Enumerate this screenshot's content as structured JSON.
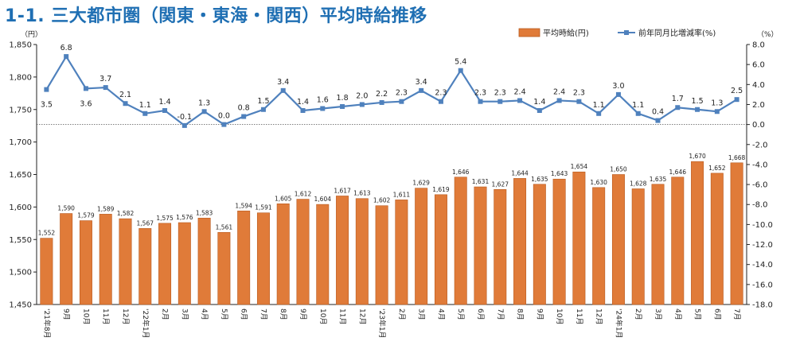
{
  "title": "1-1. 三大都市圏（関東・東海・関西）平均時給推移",
  "chart_data": {
    "type": "bar",
    "left_unit": "（円）",
    "right_unit": "（%）",
    "categories": [
      "'21年8月",
      "9月",
      "10月",
      "11月",
      "12月",
      "'22年1月",
      "2月",
      "3月",
      "4月",
      "5月",
      "6月",
      "7月",
      "8月",
      "9月",
      "10月",
      "11月",
      "12月",
      "'23年1月",
      "2月",
      "3月",
      "4月",
      "5月",
      "6月",
      "7月",
      "8月",
      "9月",
      "10月",
      "11月",
      "12月",
      "'24年1月",
      "2月",
      "3月",
      "4月",
      "5月",
      "6月",
      "7月"
    ],
    "series": [
      {
        "name": "平均時給(円)",
        "type": "bar",
        "axis": "left",
        "color": "#e07b39",
        "values": [
          1552,
          1590,
          1579,
          1589,
          1582,
          1567,
          1575,
          1576,
          1583,
          1561,
          1594,
          1591,
          1605,
          1612,
          1604,
          1617,
          1613,
          1602,
          1611,
          1629,
          1619,
          1646,
          1631,
          1627,
          1644,
          1635,
          1643,
          1654,
          1630,
          1650,
          1628,
          1635,
          1646,
          1670,
          1652,
          1668
        ],
        "labels": [
          "1,552",
          "1,590",
          "1,579",
          "1,589",
          "1,582",
          "1,567",
          "1,575",
          "1,576",
          "1,583",
          "1,561",
          "1,594",
          "1,591",
          "1,605",
          "1,612",
          "1,604",
          "1,617",
          "1,613",
          "1,602",
          "1,611",
          "1,629",
          "1,619",
          "1,646",
          "1,631",
          "1,627",
          "1,644",
          "1,635",
          "1,643",
          "1,654",
          "1,630",
          "1,650",
          "1,628",
          "1,635",
          "1,646",
          "1,670",
          "1,652",
          "1,668"
        ]
      },
      {
        "name": "前年同月比増減率(%)",
        "type": "line",
        "axis": "right",
        "color": "#4f81bd",
        "values": [
          3.5,
          6.8,
          3.6,
          3.7,
          2.1,
          1.1,
          1.4,
          -0.1,
          1.3,
          0.0,
          0.8,
          1.5,
          3.4,
          1.4,
          1.6,
          1.8,
          2.0,
          2.2,
          2.3,
          3.4,
          2.3,
          5.4,
          2.3,
          2.3,
          2.4,
          1.4,
          2.4,
          2.3,
          1.1,
          3.0,
          1.1,
          0.4,
          1.7,
          1.5,
          1.3,
          2.5
        ],
        "labels": [
          "3.5",
          "6.8",
          "3.6",
          "3.7",
          "2.1",
          "1.1",
          "1.4",
          "-0.1",
          "1.3",
          "0.0",
          "0.8",
          "1.5",
          "3.4",
          "1.4",
          "1.6",
          "1.8",
          "2.0",
          "2.2",
          "2.3",
          "3.4",
          "2.3",
          "5.4",
          "2.3",
          "2.3",
          "2.4",
          "1.4",
          "2.4",
          "2.3",
          "1.1",
          "3.0",
          "1.1",
          "0.4",
          "1.7",
          "1.5",
          "1.3",
          "2.5"
        ]
      }
    ],
    "left_axis": {
      "ylim": [
        1450,
        1850
      ],
      "ticks": [
        "1,450",
        "1,500",
        "1,550",
        "1,600",
        "1,650",
        "1,700",
        "1,750",
        "1,800",
        "1,850"
      ]
    },
    "right_axis": {
      "ylim": [
        -18.0,
        8.0
      ],
      "ticks": [
        "-18.0",
        "-16.0",
        "-14.0",
        "-12.0",
        "-10.0",
        "-8.0",
        "-6.0",
        "-4.0",
        "-2.0",
        "0.0",
        "2.0",
        "4.0",
        "6.0",
        "8.0"
      ]
    },
    "legend_position": "top-right",
    "grid": false
  }
}
